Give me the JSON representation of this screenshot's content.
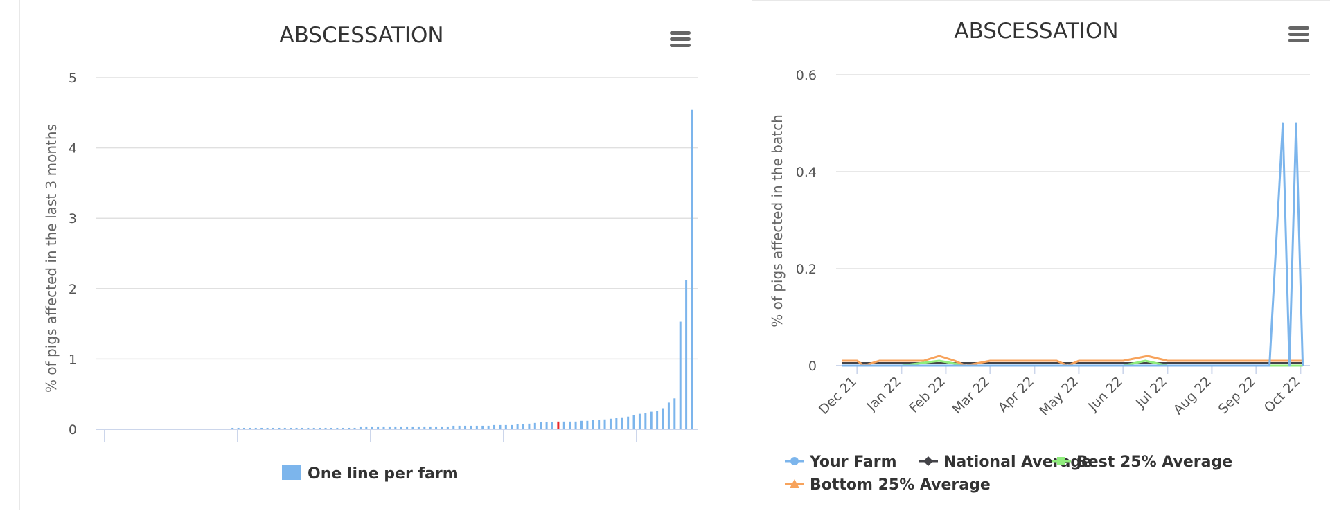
{
  "colors": {
    "bar": "#7cb5ec",
    "bar_highlight": "#e8282b",
    "your_farm": "#7cb5ec",
    "national_average": "#434348",
    "best_25": "#90ed7d",
    "bottom_25": "#f7a35c",
    "gridline": "#e0e0e0"
  },
  "chart_data": [
    {
      "type": "bar",
      "title": "ABSCESSATION",
      "xlabel": "",
      "ylabel": "% of pigs affected in the last 3 months",
      "ylim": [
        0,
        5
      ],
      "yticks": [
        "0",
        "1",
        "2",
        "3",
        "4",
        "5"
      ],
      "grid": true,
      "legend": {
        "position": "bottom-center",
        "label": "One line per farm"
      },
      "highlight_index": 78,
      "values": [
        0,
        0,
        0,
        0,
        0,
        0,
        0,
        0,
        0,
        0,
        0,
        0,
        0,
        0,
        0,
        0,
        0,
        0,
        0,
        0,
        0,
        0,
        0.02,
        0.02,
        0.02,
        0.02,
        0.02,
        0.02,
        0.02,
        0.02,
        0.02,
        0.02,
        0.02,
        0.02,
        0.02,
        0.02,
        0.02,
        0.02,
        0.02,
        0.02,
        0.02,
        0.02,
        0.02,
        0.02,
        0.04,
        0.04,
        0.04,
        0.04,
        0.04,
        0.04,
        0.04,
        0.04,
        0.04,
        0.04,
        0.04,
        0.04,
        0.04,
        0.04,
        0.04,
        0.04,
        0.05,
        0.05,
        0.05,
        0.05,
        0.05,
        0.05,
        0.05,
        0.06,
        0.06,
        0.06,
        0.06,
        0.07,
        0.07,
        0.08,
        0.09,
        0.1,
        0.1,
        0.1,
        0.11,
        0.11,
        0.11,
        0.11,
        0.12,
        0.12,
        0.13,
        0.13,
        0.14,
        0.15,
        0.16,
        0.17,
        0.18,
        0.2,
        0.22,
        0.23,
        0.25,
        0.26,
        0.3,
        0.38,
        0.44,
        1.53,
        2.12,
        4.54
      ]
    },
    {
      "type": "line",
      "title": "ABSCESSATION",
      "xlabel": "",
      "ylabel": "% of pigs affected in the batch",
      "ylim": [
        0,
        0.6
      ],
      "yticks": [
        "0",
        "0.2",
        "0.4",
        "0.6"
      ],
      "grid": true,
      "legend": {
        "position": "bottom-left"
      },
      "categories": [
        "Dec 21",
        "Jan 22",
        "Feb 22",
        "Mar 22",
        "Apr 22",
        "May 22",
        "Jun 22",
        "Jul 22",
        "Aug 22",
        "Sep 22",
        "Oct 22"
      ],
      "x_range": [
        -0.35,
        10.05
      ],
      "series": [
        {
          "name": "Your Farm",
          "marker": "circle",
          "x": [
            -0.35,
            9.3,
            9.6,
            9.75,
            9.9,
            10.05
          ],
          "values": [
            0,
            0,
            0.5,
            0,
            0.5,
            0
          ]
        },
        {
          "name": "National Average",
          "marker": "diamond",
          "x": [
            -0.35,
            10.05
          ],
          "values": [
            0.005,
            0.005
          ]
        },
        {
          "name": "Best 25% Average",
          "marker": "square",
          "x": [
            -0.35,
            0.1,
            1.0,
            1.85,
            2.45,
            3.0,
            4.0,
            4.5,
            5.0,
            6.0,
            6.5,
            7.0,
            8.0,
            9.0,
            10.05
          ],
          "values": [
            0,
            0,
            0,
            0.01,
            0,
            0,
            0,
            0,
            0,
            0,
            0.01,
            0,
            0,
            0,
            0
          ]
        },
        {
          "name": "Bottom 25% Average",
          "marker": "triangle",
          "x": [
            -0.35,
            0.0,
            0.15,
            0.5,
            1.0,
            1.5,
            1.85,
            2.2,
            2.45,
            3.0,
            3.5,
            4.0,
            4.5,
            4.75,
            5.0,
            5.5,
            6.0,
            6.55,
            7.0,
            7.5,
            8.0,
            8.5,
            9.0,
            9.5,
            10.05
          ],
          "values": [
            0.01,
            0.01,
            0.0,
            0.01,
            0.01,
            0.01,
            0.02,
            0.01,
            0.0,
            0.01,
            0.01,
            0.01,
            0.01,
            0.0,
            0.01,
            0.01,
            0.01,
            0.02,
            0.01,
            0.01,
            0.01,
            0.01,
            0.01,
            0.01,
            0.01
          ]
        }
      ]
    }
  ]
}
